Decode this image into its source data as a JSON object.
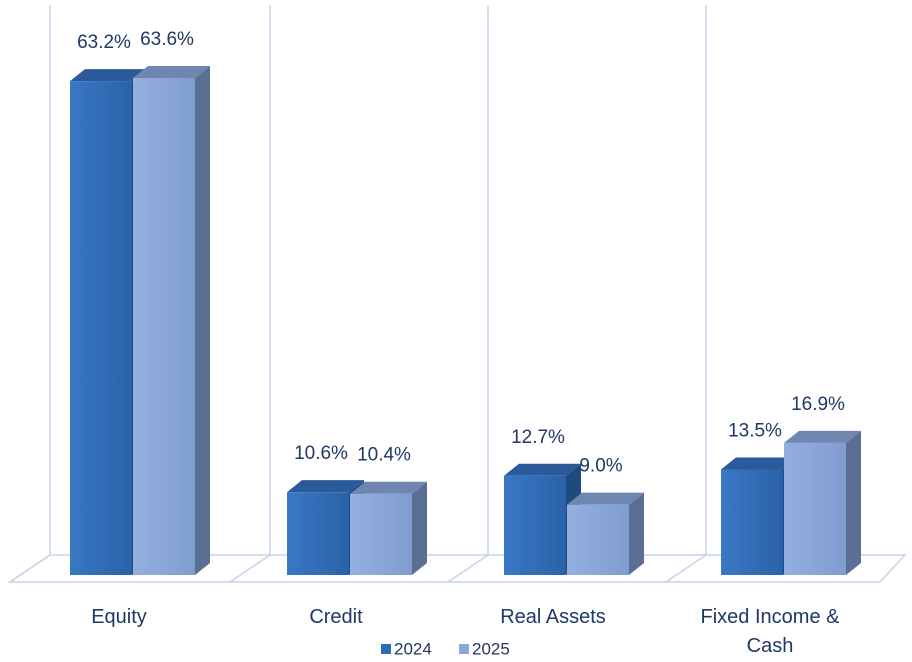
{
  "chart_data": {
    "type": "bar3d",
    "categories": [
      "Equity",
      "Credit",
      "Real Assets",
      "Fixed Income & Cash"
    ],
    "series": [
      {
        "name": "2024",
        "color": "#2e6bb5",
        "values": [
          63.2,
          10.6,
          12.7,
          13.5
        ],
        "value_labels": [
          "63.2%",
          "10.6%",
          "12.7%",
          "13.5%"
        ]
      },
      {
        "name": "2025",
        "color": "#8aa7d8",
        "values": [
          63.6,
          10.4,
          9.0,
          16.9
        ],
        "value_labels": [
          "63.6%",
          "10.4%",
          "9.0%",
          "16.9%"
        ]
      }
    ]
  }
}
